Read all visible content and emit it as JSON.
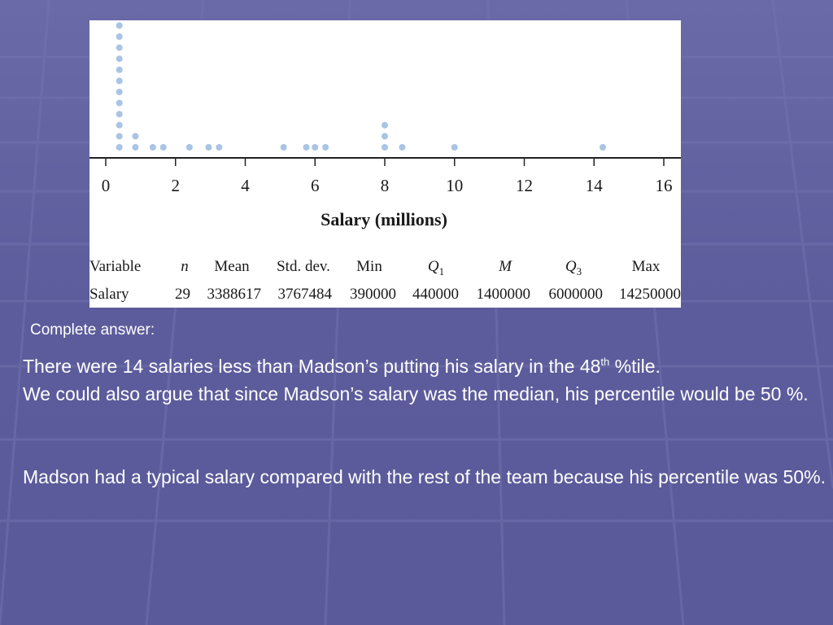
{
  "chart_data": {
    "type": "scatter",
    "subtype": "dotplot",
    "xlabel": "Salary (millions)",
    "xlim": [
      0,
      16
    ],
    "x_ticks": [
      0,
      2,
      4,
      6,
      8,
      10,
      12,
      14,
      16
    ],
    "dot_color": "#a9c4e4",
    "points": [
      {
        "x": 0.39,
        "count": 12
      },
      {
        "x": 0.85,
        "count": 2
      },
      {
        "x": 1.35,
        "count": 1
      },
      {
        "x": 1.65,
        "count": 1
      },
      {
        "x": 2.4,
        "count": 1
      },
      {
        "x": 2.95,
        "count": 1
      },
      {
        "x": 3.25,
        "count": 1
      },
      {
        "x": 5.1,
        "count": 1
      },
      {
        "x": 5.75,
        "count": 1
      },
      {
        "x": 6.0,
        "count": 1
      },
      {
        "x": 6.3,
        "count": 1
      },
      {
        "x": 8.0,
        "count": 3
      },
      {
        "x": 8.5,
        "count": 1
      },
      {
        "x": 10.0,
        "count": 1
      },
      {
        "x": 14.25,
        "count": 1
      }
    ]
  },
  "stats_table": {
    "headers": [
      {
        "key": "variable",
        "label": "Variable"
      },
      {
        "key": "n",
        "label": "n"
      },
      {
        "key": "mean",
        "label": "Mean"
      },
      {
        "key": "sd",
        "label": "Std. dev."
      },
      {
        "key": "min",
        "label": "Min"
      },
      {
        "key": "q1",
        "label": "Q",
        "sub": "1"
      },
      {
        "key": "m",
        "label": "M"
      },
      {
        "key": "q3",
        "label": "Q",
        "sub": "3"
      },
      {
        "key": "max",
        "label": "Max"
      }
    ],
    "row": {
      "variable": "Salary",
      "n": "29",
      "mean": "3388617",
      "sd": "3767484",
      "min": "390000",
      "q1": "440000",
      "m": "1400000",
      "q3": "6000000",
      "max": "14250000"
    }
  },
  "text": {
    "complete_label": "Complete answer:",
    "p1_before_sup": "There were 14 salaries less than Madson’s putting his salary in the 48",
    "p1_sup": "th",
    "p1_after_sup": " %tile.",
    "p1_line2": "We could also argue that since Madson’s salary was the median, his percentile would be 50 %.",
    "p2": "Madson had a typical salary compared with the rest of the team because his percentile was 50%."
  },
  "colors": {
    "background": "#5f5f9f",
    "text": "#ffffff",
    "figure_bg": "#ffffff"
  }
}
